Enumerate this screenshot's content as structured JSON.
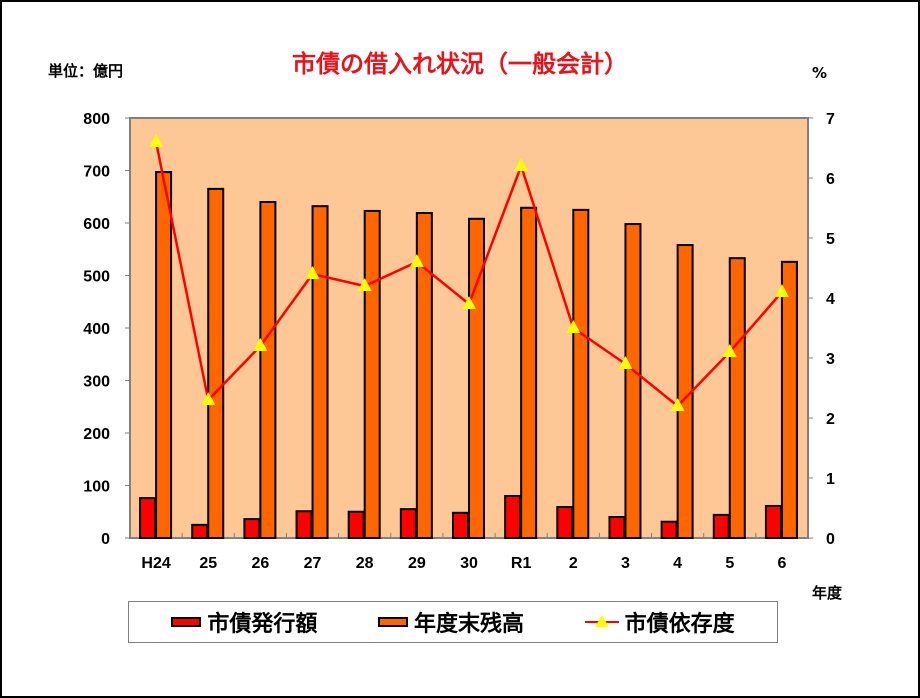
{
  "chart_data": {
    "type": "bar+line",
    "title": "市債の借入れ状況（一般会計）",
    "xlabel": "年度",
    "ylabel_left": "単位：億円",
    "ylabel_right": "%",
    "categories": [
      "H24",
      "25",
      "26",
      "27",
      "28",
      "29",
      "30",
      "R1",
      "2",
      "3",
      "4",
      "5",
      "6"
    ],
    "ylim_left": [
      0,
      800
    ],
    "yticks_left": [
      0,
      100,
      200,
      300,
      400,
      500,
      600,
      700,
      800
    ],
    "ylim_right": [
      0,
      7
    ],
    "yticks_right": [
      0,
      1,
      2,
      3,
      4,
      5,
      6,
      7
    ],
    "grid": false,
    "legend_position": "bottom",
    "series": [
      {
        "name": "市債発行額",
        "type": "bar",
        "axis": "left",
        "color": "#ff0000",
        "values": [
          76,
          25,
          36,
          51,
          50,
          55,
          48,
          80,
          59,
          40,
          31,
          44,
          61
        ]
      },
      {
        "name": "年度末残高",
        "type": "bar",
        "axis": "left",
        "color": "#ff6600",
        "values": [
          697,
          665,
          640,
          632,
          623,
          619,
          608,
          629,
          625,
          598,
          558,
          533,
          526
        ]
      },
      {
        "name": "市債依存度",
        "type": "line",
        "axis": "right",
        "color": "#ff0000",
        "marker_color": "#ffff00",
        "marker": "triangle",
        "values": [
          6.6,
          2.3,
          3.2,
          4.4,
          4.2,
          4.6,
          3.9,
          6.2,
          3.5,
          2.9,
          2.2,
          3.1,
          4.1
        ]
      }
    ]
  },
  "labels": {
    "title": "市債の借入れ状況（一般会計）",
    "unit_left": "単位：億円",
    "unit_right": "%",
    "x_unit": "年度"
  },
  "legend": [
    {
      "label": "市債発行額",
      "color": "#ff0000"
    },
    {
      "label": "年度末残高",
      "color": "#ff6600"
    },
    {
      "label": "市債依存度",
      "color": "#ff0000",
      "marker_color": "#ffff00"
    }
  ],
  "colors": {
    "plot_bg": "#fdc896",
    "issuance": "#ff0000",
    "balance": "#ff6600",
    "line": "#ff0000",
    "marker": "#ffff00",
    "title": "#e8141c"
  }
}
